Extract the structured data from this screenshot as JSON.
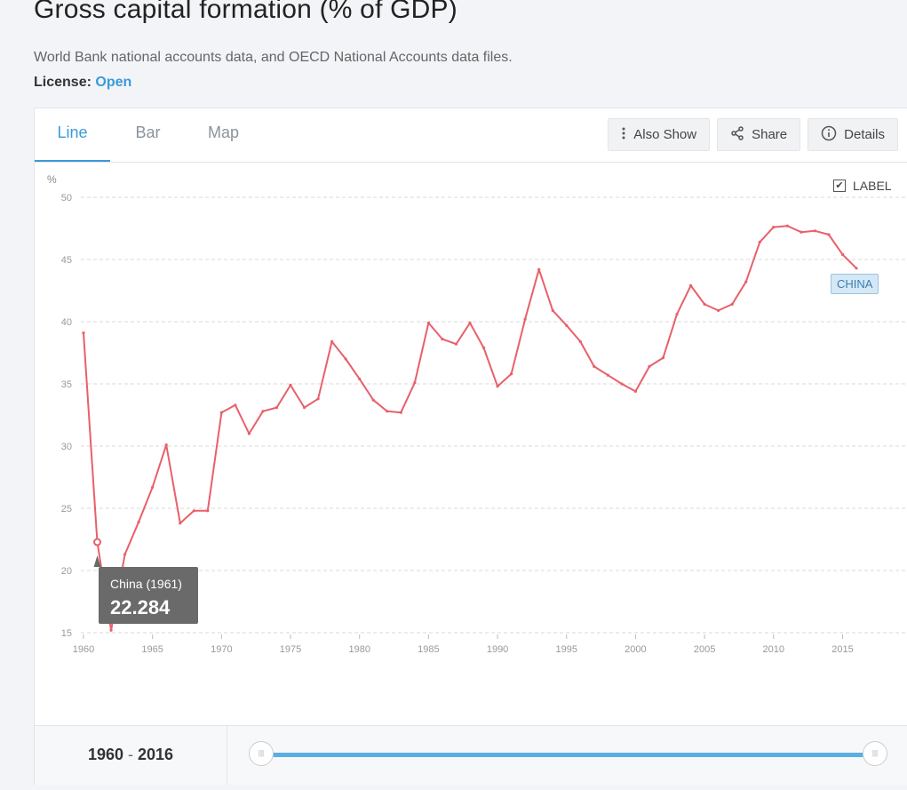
{
  "header": {
    "title": "Gross capital formation (% of GDP)",
    "source": "World Bank national accounts data, and OECD National Accounts data files.",
    "license_label": "License:",
    "license_value": "Open"
  },
  "tabs": [
    {
      "label": "Line",
      "active": true
    },
    {
      "label": "Bar",
      "active": false
    },
    {
      "label": "Map",
      "active": false
    }
  ],
  "toolbar": {
    "also_show": "Also Show",
    "share": "Share",
    "details": "Details"
  },
  "legend": {
    "label_toggle": "LABEL",
    "checked": true
  },
  "series_tag": "CHINA",
  "tooltip": {
    "title": "China (1961)",
    "value": "22.284"
  },
  "footer": {
    "range_start": "1960",
    "range_sep": "-",
    "range_end": "2016"
  },
  "colors": {
    "line": "#e8606a",
    "accent": "#3a9ad9",
    "grid": "#d9d9d9"
  },
  "chart_data": {
    "type": "line",
    "ylabel": "%",
    "ylim": [
      15,
      50
    ],
    "yticks": [
      15,
      20,
      25,
      30,
      35,
      40,
      45,
      50
    ],
    "xlim": [
      1960,
      2016
    ],
    "xticks": [
      1960,
      1965,
      1970,
      1975,
      1980,
      1985,
      1990,
      1995,
      2000,
      2005,
      2010,
      2015
    ],
    "grid": true,
    "series": [
      {
        "name": "China",
        "x": [
          1960,
          1961,
          1962,
          1963,
          1964,
          1965,
          1966,
          1967,
          1968,
          1969,
          1970,
          1971,
          1972,
          1973,
          1974,
          1975,
          1976,
          1977,
          1978,
          1979,
          1980,
          1981,
          1982,
          1983,
          1984,
          1985,
          1986,
          1987,
          1988,
          1989,
          1990,
          1991,
          1992,
          1993,
          1994,
          1995,
          1996,
          1997,
          1998,
          1999,
          2000,
          2001,
          2002,
          2003,
          2004,
          2005,
          2006,
          2007,
          2008,
          2009,
          2010,
          2011,
          2012,
          2013,
          2014,
          2015,
          2016
        ],
        "values": [
          39.1,
          22.284,
          15.2,
          21.3,
          23.9,
          26.7,
          30.1,
          23.8,
          24.8,
          24.8,
          32.7,
          33.3,
          31.0,
          32.8,
          33.1,
          34.9,
          33.1,
          33.8,
          38.4,
          37.0,
          35.4,
          33.7,
          32.8,
          32.7,
          35.1,
          39.9,
          38.6,
          38.2,
          39.9,
          37.9,
          34.8,
          35.8,
          40.2,
          44.2,
          40.9,
          39.7,
          38.4,
          36.4,
          35.7,
          35.0,
          34.4,
          36.4,
          37.1,
          40.6,
          42.9,
          41.4,
          40.9,
          41.4,
          43.2,
          46.4,
          47.6,
          47.7,
          47.2,
          47.3,
          47.0,
          45.4,
          44.3
        ]
      }
    ],
    "highlight": {
      "x": 1961,
      "value": 22.284
    }
  }
}
